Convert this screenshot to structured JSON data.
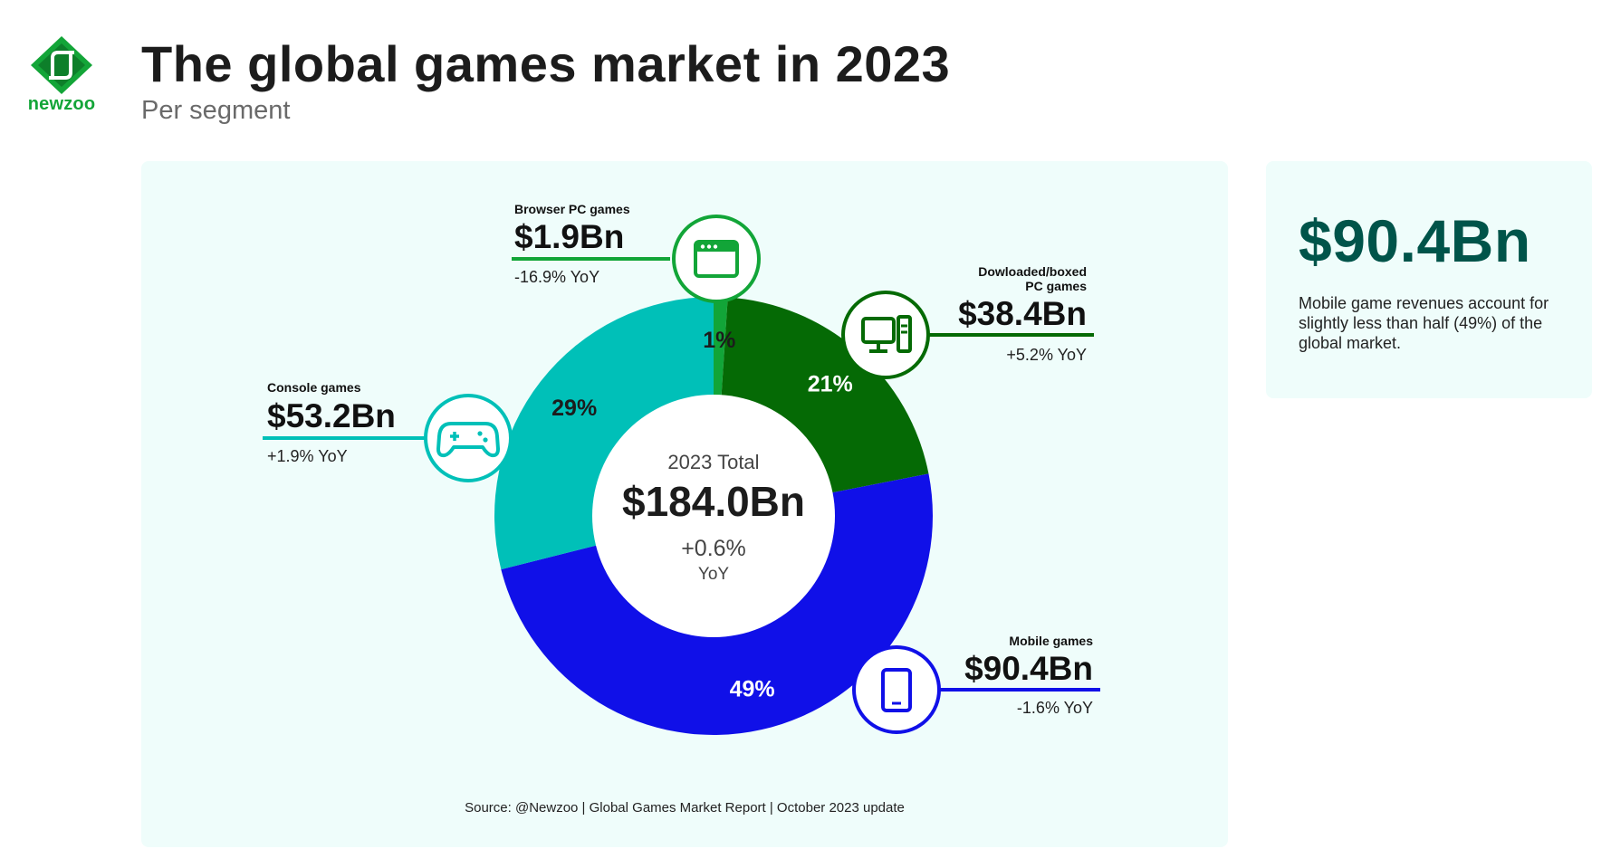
{
  "header": {
    "logo_text": "newzoo",
    "title": "The global games market in 2023",
    "subtitle": "Per segment"
  },
  "chart_data": {
    "type": "pie",
    "donut": true,
    "unit": "$ Bn",
    "center": {
      "label": "2023 Total",
      "total": "$184.0Bn",
      "yoy": "+0.6%",
      "yoy_label": "YoY"
    },
    "segments": [
      {
        "name": "Browser PC games",
        "value": 1.9,
        "value_label": "$1.9Bn",
        "percent_label": "1%",
        "yoy": "-16.9% YoY",
        "color": "#12a538",
        "icon": "browser-window-icon"
      },
      {
        "name": "Dowloaded/boxed PC games",
        "name_line1": "Dowloaded/boxed",
        "name_line2": "PC games",
        "value": 38.4,
        "value_label": "$38.4Bn",
        "percent_label": "21%",
        "yoy": "+5.2% YoY",
        "color": "#056a05",
        "icon": "desktop-pc-icon"
      },
      {
        "name": "Mobile games",
        "value": 90.4,
        "value_label": "$90.4Bn",
        "percent_label": "49%",
        "yoy": "-1.6% YoY",
        "color": "#1010e8",
        "icon": "mobile-phone-icon"
      },
      {
        "name": "Console games",
        "value": 53.2,
        "value_label": "$53.2Bn",
        "percent_label": "29%",
        "yoy": "+1.9% YoY",
        "color": "#00c0b8",
        "icon": "gamepad-icon"
      }
    ]
  },
  "highlight": {
    "value": "$90.4Bn",
    "text": "Mobile game revenues account for slightly less than half (49%) of the global market.",
    "color": "#00544a"
  },
  "source": "Source: @Newzoo | Global Games Market Report | October 2023 update"
}
